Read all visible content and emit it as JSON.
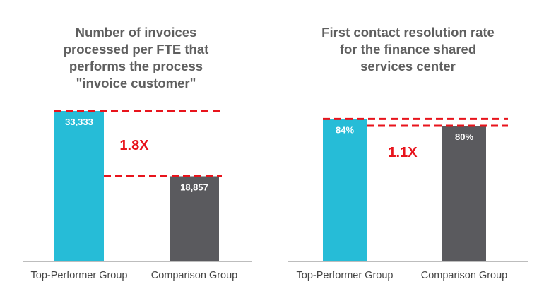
{
  "colors": {
    "top": "#26bcd7",
    "comparison": "#5a5a5e",
    "ref_line": "#e8141c",
    "axis": "#bdbdbd",
    "title": "#5f5f5f"
  },
  "chart_data": [
    {
      "type": "bar",
      "title_lines": [
        "Number of invoices",
        "processed per FTE that",
        "performs the process",
        "\"invoice customer\""
      ],
      "categories": [
        "Top-Performer Group",
        "Comparison Group"
      ],
      "values": [
        33333,
        18857
      ],
      "data_labels": [
        "33,333",
        "18,857"
      ],
      "ylim": [
        0,
        33333
      ],
      "multiplier_label": "1.8X",
      "grid": false,
      "legend": "none"
    },
    {
      "type": "bar",
      "title_lines": [
        "First contact resolution rate",
        "for the finance shared",
        "services center"
      ],
      "categories": [
        "Top-Performer Group",
        "Comparison Group"
      ],
      "values": [
        84,
        80
      ],
      "data_labels": [
        "84%",
        "80%"
      ],
      "ylim": [
        0,
        100
      ],
      "multiplier_label": "1.1X",
      "grid": false,
      "legend": "none"
    }
  ]
}
